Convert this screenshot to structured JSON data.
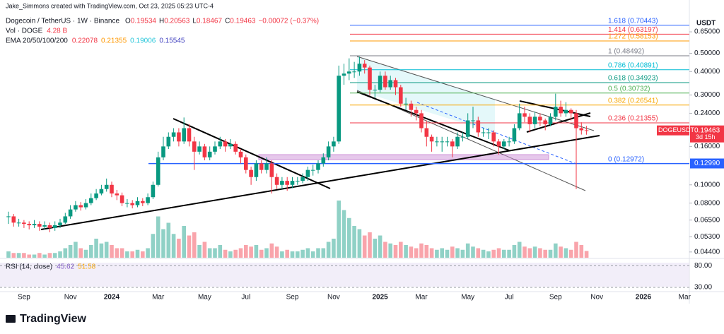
{
  "header": {
    "author_line": "Jake_Simmons created with TradingView.com, Oct 23, 2025 05:23 UTC-4",
    "symbol": "Dogecoin / TetherUS · 1W · Binance",
    "ohlc": [
      {
        "key": "O",
        "value": "0.19534"
      },
      {
        "key": "H",
        "value": "0.20563"
      },
      {
        "key": "L",
        "value": "0.18467"
      },
      {
        "key": "C",
        "value": "0.19463"
      }
    ],
    "change": "−0.00072 (−0.37%)",
    "volume_label": "Vol · DOGE",
    "volume_value": "4.28 B",
    "ema_label": "EMA 20/50/100/200",
    "ema_values": [
      {
        "text": "0.22078",
        "color": "#f23645"
      },
      {
        "text": "0.21355",
        "color": "#ff9800"
      },
      {
        "text": "0.19006",
        "color": "#26c6da"
      },
      {
        "text": "0.15545",
        "color": "#3f3fbf"
      }
    ]
  },
  "chart_data": {
    "type": "candlestick",
    "log_scale": true,
    "grid": false,
    "up_color": "#089981",
    "down_color": "#f23645",
    "currency": "USDT",
    "categories": [
      null,
      null,
      null,
      "Sep",
      null,
      null,
      null,
      null,
      null,
      null,
      null,
      null,
      "Nov",
      null,
      null,
      null,
      null,
      null,
      null,
      null,
      "2024",
      null,
      null,
      null,
      null,
      null,
      null,
      null,
      null,
      "Mar",
      null,
      null,
      null,
      null,
      null,
      null,
      null,
      null,
      "May",
      null,
      null,
      null,
      null,
      null,
      null,
      null,
      "Jul",
      null,
      null,
      null,
      null,
      null,
      null,
      null,
      null,
      "Sep",
      null,
      null,
      null,
      null,
      null,
      null,
      null,
      "Nov",
      null,
      null,
      null,
      null,
      null,
      null,
      null,
      null,
      "2025",
      null,
      null,
      null,
      null,
      null,
      null,
      null,
      "Mar",
      null,
      null,
      null,
      null,
      null,
      null,
      null,
      null,
      "May",
      null,
      null,
      null,
      null,
      null,
      null,
      null,
      "Jul",
      null,
      null,
      null,
      null,
      null,
      null,
      null,
      null,
      "Sep",
      null,
      null,
      null,
      null,
      null,
      null,
      null,
      "Nov",
      null,
      null,
      null,
      null,
      null,
      null,
      null,
      null,
      "2026",
      null,
      null,
      null,
      null,
      null,
      null,
      null,
      "Mar",
      null
    ],
    "close": [
      0.068,
      0.063,
      0.063,
      0.062,
      0.061,
      0.062,
      0.06,
      0.061,
      0.059,
      0.061,
      0.063,
      0.068,
      0.074,
      0.078,
      0.076,
      0.08,
      0.085,
      0.09,
      0.095,
      0.1,
      0.09,
      0.088,
      0.08,
      0.08,
      0.078,
      0.082,
      0.08,
      0.086,
      0.1,
      0.14,
      0.16,
      0.18,
      0.19,
      0.17,
      0.2,
      0.17,
      0.15,
      0.16,
      0.14,
      0.15,
      0.16,
      0.17,
      0.16,
      0.165,
      0.15,
      0.14,
      0.12,
      0.11,
      0.13,
      0.12,
      0.13,
      0.11,
      0.1,
      0.105,
      0.1,
      0.105,
      0.105,
      0.11,
      0.12,
      0.12,
      0.13,
      0.14,
      0.16,
      0.17,
      0.38,
      0.39,
      0.4,
      0.4,
      0.44,
      0.42,
      0.32,
      0.32,
      0.38,
      0.33,
      0.36,
      0.33,
      0.27,
      0.27,
      0.25,
      0.24,
      0.2,
      0.18,
      0.17,
      0.17,
      0.17,
      0.17,
      0.16,
      0.18,
      0.18,
      0.22,
      0.22,
      0.19,
      0.19,
      0.19,
      0.17,
      0.16,
      0.17,
      0.17,
      0.2,
      0.24,
      0.23,
      0.21,
      0.23,
      0.22,
      0.21,
      0.23,
      0.26,
      0.24,
      0.25,
      0.24,
      0.2,
      0.195,
      0.19463,
      null,
      null,
      null,
      null,
      null,
      null,
      null,
      null,
      null,
      null,
      null,
      null,
      null,
      null,
      null,
      null,
      null,
      null,
      null,
      null
    ],
    "high": [
      0.072,
      0.07,
      0.066,
      0.065,
      0.064,
      0.065,
      0.064,
      0.064,
      0.063,
      0.064,
      0.066,
      0.071,
      0.078,
      0.082,
      0.081,
      0.084,
      0.09,
      0.095,
      0.1,
      0.108,
      0.104,
      0.094,
      0.091,
      0.084,
      0.083,
      0.086,
      0.085,
      0.09,
      0.104,
      0.15,
      0.18,
      0.19,
      0.2,
      0.2,
      0.228,
      0.21,
      0.18,
      0.17,
      0.165,
      0.16,
      0.17,
      0.18,
      0.175,
      0.175,
      0.17,
      0.155,
      0.145,
      0.125,
      0.135,
      0.135,
      0.14,
      0.135,
      0.115,
      0.11,
      0.11,
      0.11,
      0.11,
      0.115,
      0.125,
      0.128,
      0.135,
      0.147,
      0.17,
      0.18,
      0.43,
      0.44,
      0.47,
      0.45,
      0.48,
      0.46,
      0.43,
      0.34,
      0.4,
      0.4,
      0.38,
      0.37,
      0.34,
      0.29,
      0.28,
      0.26,
      0.25,
      0.22,
      0.185,
      0.18,
      0.18,
      0.18,
      0.175,
      0.19,
      0.19,
      0.24,
      0.26,
      0.23,
      0.2,
      0.2,
      0.195,
      0.175,
      0.175,
      0.18,
      0.21,
      0.27,
      0.26,
      0.24,
      0.245,
      0.24,
      0.225,
      0.24,
      0.305,
      0.28,
      0.275,
      0.255,
      0.25,
      0.215,
      0.20563,
      null,
      null,
      null,
      null,
      null,
      null,
      null,
      null,
      null,
      null,
      null,
      null,
      null,
      null,
      null,
      null,
      null,
      null,
      null,
      null
    ],
    "low": [
      0.062,
      0.06,
      0.06,
      0.059,
      0.058,
      0.059,
      0.057,
      0.058,
      0.056,
      0.057,
      0.059,
      0.062,
      0.066,
      0.072,
      0.073,
      0.074,
      0.078,
      0.083,
      0.088,
      0.092,
      0.086,
      0.083,
      0.077,
      0.076,
      0.075,
      0.076,
      0.077,
      0.078,
      0.084,
      0.098,
      0.135,
      0.155,
      0.17,
      0.16,
      0.165,
      0.16,
      0.12,
      0.145,
      0.135,
      0.135,
      0.145,
      0.155,
      0.15,
      0.155,
      0.145,
      0.13,
      0.115,
      0.1,
      0.105,
      0.115,
      0.115,
      0.09,
      0.095,
      0.095,
      0.093,
      0.096,
      0.1,
      0.102,
      0.105,
      0.112,
      0.115,
      0.125,
      0.135,
      0.15,
      0.165,
      0.34,
      0.36,
      0.37,
      0.38,
      0.39,
      0.3,
      0.29,
      0.31,
      0.32,
      0.32,
      0.3,
      0.26,
      0.25,
      0.23,
      0.22,
      0.19,
      0.16,
      0.15,
      0.16,
      0.15,
      0.16,
      0.14,
      0.155,
      0.17,
      0.175,
      0.2,
      0.18,
      0.18,
      0.175,
      0.16,
      0.145,
      0.155,
      0.16,
      0.165,
      0.195,
      0.215,
      0.19,
      0.2,
      0.205,
      0.195,
      0.205,
      0.22,
      0.23,
      0.23,
      0.22,
      0.095,
      0.185,
      0.18467,
      null,
      null,
      null,
      null,
      null,
      null,
      null,
      null,
      null,
      null,
      null,
      null,
      null,
      null,
      null,
      null,
      null,
      null,
      null,
      null
    ],
    "volume": [
      4,
      3,
      3,
      3,
      2,
      2,
      3,
      2,
      3,
      3,
      4,
      6,
      8,
      10,
      6,
      5,
      8,
      12,
      9,
      10,
      8,
      6,
      6,
      4,
      4,
      5,
      4,
      6,
      15,
      26,
      18,
      22,
      15,
      12,
      20,
      14,
      16,
      8,
      10,
      6,
      6,
      8,
      5,
      4,
      5,
      6,
      8,
      7,
      8,
      5,
      6,
      9,
      7,
      4,
      5,
      4,
      4,
      5,
      6,
      4,
      6,
      6,
      10,
      12,
      36,
      30,
      25,
      20,
      18,
      14,
      16,
      12,
      14,
      10,
      9,
      8,
      10,
      8,
      7,
      6,
      9,
      8,
      6,
      5,
      6,
      5,
      7,
      6,
      5,
      9,
      7,
      6,
      5,
      4,
      5,
      6,
      5,
      5,
      8,
      10,
      7,
      6,
      7,
      6,
      5,
      5,
      9,
      7,
      6,
      5,
      10,
      8,
      4.28,
      null,
      null,
      null,
      null,
      null,
      null,
      null,
      null,
      null,
      null,
      null,
      null,
      null,
      null,
      null,
      null,
      null,
      null,
      null,
      null
    ],
    "volume_lim": [
      0,
      40
    ],
    "ylim": [
      0.041,
      0.88
    ],
    "yticks": [
      {
        "value": 0.65,
        "label": "0.65000"
      },
      {
        "value": 0.5,
        "label": "0.50000"
      },
      {
        "value": 0.4,
        "label": "0.40000"
      },
      {
        "value": 0.3,
        "label": "0.30000"
      },
      {
        "value": 0.24,
        "label": "0.24000"
      },
      {
        "value": 0.16,
        "label": "0.16000"
      },
      {
        "value": 0.1,
        "label": "0.10000"
      },
      {
        "value": 0.08,
        "label": "0.08000"
      },
      {
        "value": 0.065,
        "label": "0.06500"
      },
      {
        "value": 0.053,
        "label": "0.05300"
      },
      {
        "value": 0.044,
        "label": "0.04400"
      }
    ],
    "fib": [
      {
        "value": 0.70443,
        "label": "1.618 (0.70443)",
        "color": "#2962ff"
      },
      {
        "value": 0.63197,
        "label": "1.414 (0.63197)",
        "color": "#f23645"
      },
      {
        "value": 0.58153,
        "label": "1.272 (0.58153)",
        "color": "#ff9800"
      },
      {
        "value": 0.48492,
        "label": "1 (0.48492)",
        "color": "#787b86"
      },
      {
        "value": 0.40891,
        "label": "0.786 (0.40891)",
        "color": "#00bcd4"
      },
      {
        "value": 0.34923,
        "label": "0.618 (0.34923)",
        "color": "#089981"
      },
      {
        "value": 0.30732,
        "label": "0.5 (0.30732)",
        "color": "#4caf50"
      },
      {
        "value": 0.26541,
        "label": "0.382 (0.26541)",
        "color": "#f7a600"
      },
      {
        "value": 0.21355,
        "label": "0.236 (0.21355)",
        "color": "#f23645"
      },
      {
        "value": 0.12972,
        "label": "0 (0.12972)",
        "color": "#2962ff"
      }
    ],
    "price_tags": [
      {
        "value": 0.19463,
        "label": "0.19463",
        "name": "DOGEUSDT",
        "countdown": "3d 15h",
        "color": "#f23645"
      },
      {
        "value": 0.1299,
        "label": "0.12990",
        "color": "#2962ff"
      }
    ]
  },
  "rsi": {
    "label": "RSI (14, close)",
    "values": [
      {
        "text": "45.62",
        "color": "#7e57c2"
      },
      {
        "text": "51.58",
        "color": "#f7a600"
      }
    ],
    "lim": [
      22,
      90
    ],
    "ticks": [
      {
        "value": 80,
        "label": "80.00"
      },
      {
        "value": 30,
        "label": "30.00"
      }
    ]
  },
  "footer": {
    "logo": "TradingView"
  }
}
